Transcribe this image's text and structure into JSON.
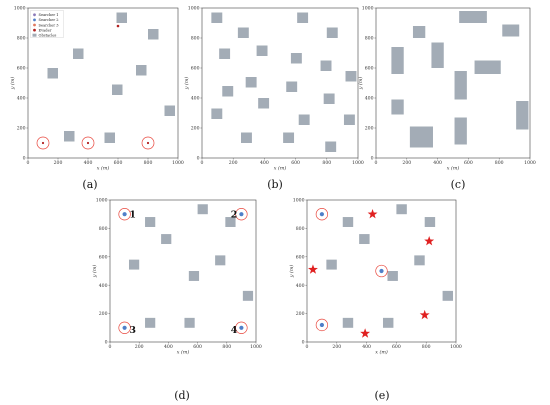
{
  "legend": [
    {
      "label": "Searcher 1",
      "color": "#8c7ab8"
    },
    {
      "label": "Searcher 2",
      "color": "#4f7fc9"
    },
    {
      "label": "Searcher 3",
      "color": "#e07a5f"
    },
    {
      "label": "Evader",
      "color": "#b22222"
    },
    {
      "label": "Obstacles",
      "color": "#a3acb6"
    }
  ],
  "axes": {
    "xlabel": "x (m)",
    "ylabel": "y (m)",
    "xticks": [
      "0",
      "200",
      "400",
      "600",
      "800",
      "1000"
    ],
    "yticks": [
      "0",
      "200",
      "400",
      "600",
      "800",
      "1000"
    ],
    "range": [
      0,
      1000
    ]
  },
  "colors": {
    "obstacle": "#a3acb6",
    "searcher": "#4f7fc9",
    "ring": "#e8463c",
    "star": "#e02020",
    "evader": "#b22222"
  },
  "panels": [
    {
      "caption": "(a)",
      "obstacles": [
        [
          130,
          530,
          70,
          70
        ],
        [
          240,
          110,
          70,
          70
        ],
        [
          300,
          660,
          70,
          70
        ],
        [
          510,
          100,
          70,
          70
        ],
        [
          560,
          420,
          70,
          70
        ],
        [
          590,
          900,
          70,
          70
        ],
        [
          720,
          550,
          70,
          70
        ],
        [
          800,
          790,
          70,
          70
        ],
        [
          910,
          280,
          70,
          70
        ]
      ],
      "searchers": [
        {
          "x": 100,
          "y": 100
        },
        {
          "x": 400,
          "y": 100
        },
        {
          "x": 800,
          "y": 100
        }
      ],
      "stars": [],
      "evader": {
        "x": 600,
        "y": 880
      },
      "numbers": [],
      "legend": true
    },
    {
      "caption": "(b)",
      "obstacles": [
        [
          60,
          900,
          70,
          70
        ],
        [
          110,
          660,
          70,
          70
        ],
        [
          130,
          410,
          70,
          70
        ],
        [
          60,
          260,
          70,
          70
        ],
        [
          230,
          800,
          70,
          70
        ],
        [
          250,
          100,
          70,
          70
        ],
        [
          280,
          470,
          70,
          70
        ],
        [
          350,
          680,
          70,
          70
        ],
        [
          360,
          330,
          70,
          70
        ],
        [
          520,
          100,
          70,
          70
        ],
        [
          540,
          440,
          70,
          70
        ],
        [
          570,
          630,
          70,
          70
        ],
        [
          610,
          900,
          70,
          70
        ],
        [
          620,
          220,
          70,
          70
        ],
        [
          760,
          580,
          70,
          70
        ],
        [
          780,
          360,
          70,
          70
        ],
        [
          800,
          800,
          70,
          70
        ],
        [
          790,
          40,
          70,
          70
        ],
        [
          910,
          220,
          70,
          70
        ],
        [
          920,
          510,
          70,
          70
        ]
      ],
      "searchers": [],
      "stars": [],
      "evader": null,
      "numbers": [],
      "legend": false
    },
    {
      "caption": "(c)",
      "obstacles": [
        [
          100,
          560,
          80,
          180
        ],
        [
          100,
          290,
          80,
          100
        ],
        [
          240,
          800,
          80,
          80
        ],
        [
          220,
          70,
          150,
          140
        ],
        [
          360,
          600,
          80,
          170
        ],
        [
          510,
          390,
          80,
          190
        ],
        [
          510,
          90,
          80,
          180
        ],
        [
          540,
          900,
          180,
          80
        ],
        [
          640,
          560,
          170,
          90
        ],
        [
          820,
          810,
          110,
          80
        ],
        [
          910,
          190,
          80,
          190
        ]
      ],
      "searchers": [],
      "stars": [],
      "evader": null,
      "numbers": [],
      "legend": false
    },
    {
      "caption": "(d)",
      "obstacles": [
        [
          130,
          510,
          70,
          70
        ],
        [
          240,
          810,
          70,
          70
        ],
        [
          240,
          100,
          70,
          70
        ],
        [
          350,
          690,
          70,
          70
        ],
        [
          510,
          100,
          70,
          70
        ],
        [
          540,
          430,
          70,
          70
        ],
        [
          600,
          900,
          70,
          70
        ],
        [
          720,
          540,
          70,
          70
        ],
        [
          790,
          810,
          70,
          70
        ],
        [
          910,
          290,
          70,
          70
        ]
      ],
      "searchers": [
        {
          "x": 100,
          "y": 900
        },
        {
          "x": 900,
          "y": 900
        },
        {
          "x": 100,
          "y": 100
        },
        {
          "x": 900,
          "y": 100
        }
      ],
      "stars": [],
      "evader": null,
      "numbers": [
        {
          "text": "1",
          "x": 155,
          "y": 900
        },
        {
          "text": "2",
          "x": 850,
          "y": 900
        },
        {
          "text": "3",
          "x": 155,
          "y": 85
        },
        {
          "text": "4",
          "x": 850,
          "y": 85
        }
      ],
      "legend": false
    },
    {
      "caption": "(e)",
      "obstacles": [
        [
          130,
          510,
          70,
          70
        ],
        [
          240,
          810,
          70,
          70
        ],
        [
          240,
          100,
          70,
          70
        ],
        [
          350,
          690,
          70,
          70
        ],
        [
          510,
          100,
          70,
          70
        ],
        [
          540,
          430,
          70,
          70
        ],
        [
          600,
          900,
          70,
          70
        ],
        [
          720,
          540,
          70,
          70
        ],
        [
          790,
          810,
          70,
          70
        ],
        [
          910,
          290,
          70,
          70
        ]
      ],
      "searchers": [
        {
          "x": 100,
          "y": 900
        },
        {
          "x": 500,
          "y": 500
        },
        {
          "x": 100,
          "y": 120
        }
      ],
      "stars": [
        {
          "x": 440,
          "y": 900
        },
        {
          "x": 820,
          "y": 710
        },
        {
          "x": 40,
          "y": 510
        },
        {
          "x": 790,
          "y": 190
        },
        {
          "x": 390,
          "y": 60
        }
      ],
      "evader": null,
      "numbers": [],
      "legend": false
    }
  ]
}
